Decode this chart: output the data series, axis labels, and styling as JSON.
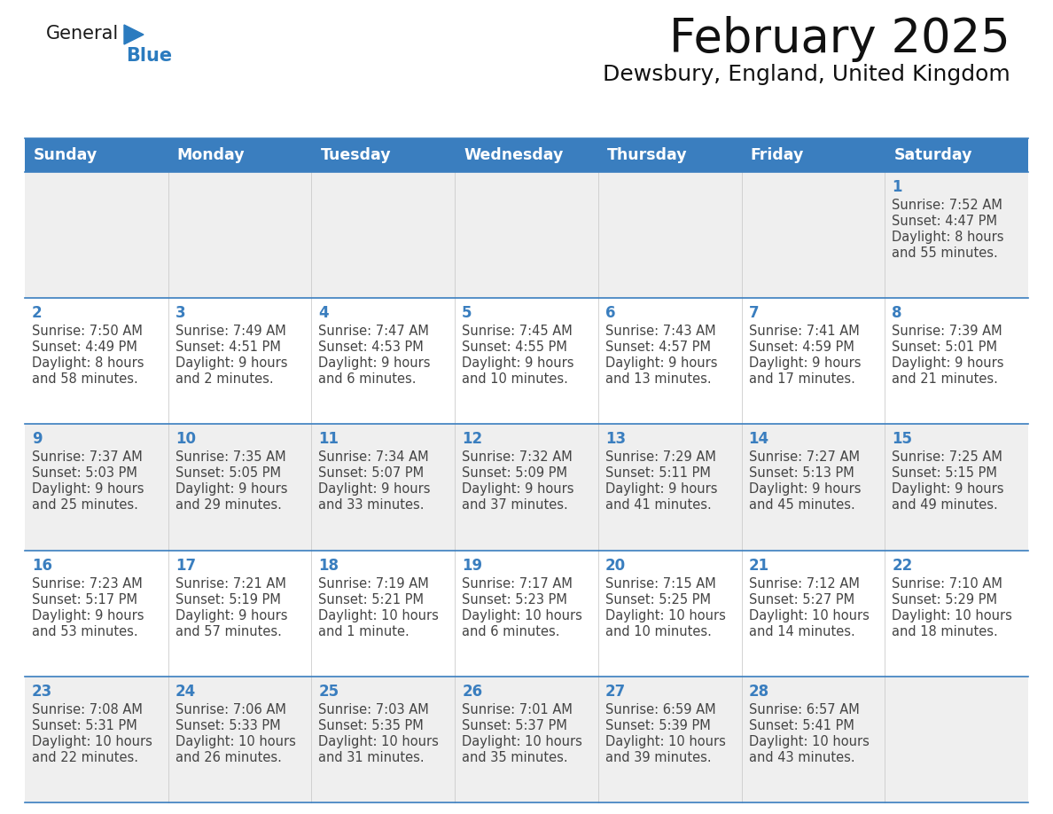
{
  "title": "February 2025",
  "subtitle": "Dewsbury, England, United Kingdom",
  "header_color": "#3a7ebf",
  "header_text_color": "#ffffff",
  "row_bg_odd": "#efefef",
  "row_bg_even": "#ffffff",
  "day_num_color": "#3a7ebf",
  "info_text_color": "#444444",
  "days_of_week": [
    "Sunday",
    "Monday",
    "Tuesday",
    "Wednesday",
    "Thursday",
    "Friday",
    "Saturday"
  ],
  "logo_general_color": "#1a1a1a",
  "logo_blue_color": "#2b7bbf",
  "calendar_data": [
    [
      null,
      null,
      null,
      null,
      null,
      null,
      {
        "day": "1",
        "sunrise": "7:52 AM",
        "sunset": "4:47 PM",
        "daylight_l1": "8 hours",
        "daylight_l2": "and 55 minutes."
      }
    ],
    [
      {
        "day": "2",
        "sunrise": "7:50 AM",
        "sunset": "4:49 PM",
        "daylight_l1": "8 hours",
        "daylight_l2": "and 58 minutes."
      },
      {
        "day": "3",
        "sunrise": "7:49 AM",
        "sunset": "4:51 PM",
        "daylight_l1": "9 hours",
        "daylight_l2": "and 2 minutes."
      },
      {
        "day": "4",
        "sunrise": "7:47 AM",
        "sunset": "4:53 PM",
        "daylight_l1": "9 hours",
        "daylight_l2": "and 6 minutes."
      },
      {
        "day": "5",
        "sunrise": "7:45 AM",
        "sunset": "4:55 PM",
        "daylight_l1": "9 hours",
        "daylight_l2": "and 10 minutes."
      },
      {
        "day": "6",
        "sunrise": "7:43 AM",
        "sunset": "4:57 PM",
        "daylight_l1": "9 hours",
        "daylight_l2": "and 13 minutes."
      },
      {
        "day": "7",
        "sunrise": "7:41 AM",
        "sunset": "4:59 PM",
        "daylight_l1": "9 hours",
        "daylight_l2": "and 17 minutes."
      },
      {
        "day": "8",
        "sunrise": "7:39 AM",
        "sunset": "5:01 PM",
        "daylight_l1": "9 hours",
        "daylight_l2": "and 21 minutes."
      }
    ],
    [
      {
        "day": "9",
        "sunrise": "7:37 AM",
        "sunset": "5:03 PM",
        "daylight_l1": "9 hours",
        "daylight_l2": "and 25 minutes."
      },
      {
        "day": "10",
        "sunrise": "7:35 AM",
        "sunset": "5:05 PM",
        "daylight_l1": "9 hours",
        "daylight_l2": "and 29 minutes."
      },
      {
        "day": "11",
        "sunrise": "7:34 AM",
        "sunset": "5:07 PM",
        "daylight_l1": "9 hours",
        "daylight_l2": "and 33 minutes."
      },
      {
        "day": "12",
        "sunrise": "7:32 AM",
        "sunset": "5:09 PM",
        "daylight_l1": "9 hours",
        "daylight_l2": "and 37 minutes."
      },
      {
        "day": "13",
        "sunrise": "7:29 AM",
        "sunset": "5:11 PM",
        "daylight_l1": "9 hours",
        "daylight_l2": "and 41 minutes."
      },
      {
        "day": "14",
        "sunrise": "7:27 AM",
        "sunset": "5:13 PM",
        "daylight_l1": "9 hours",
        "daylight_l2": "and 45 minutes."
      },
      {
        "day": "15",
        "sunrise": "7:25 AM",
        "sunset": "5:15 PM",
        "daylight_l1": "9 hours",
        "daylight_l2": "and 49 minutes."
      }
    ],
    [
      {
        "day": "16",
        "sunrise": "7:23 AM",
        "sunset": "5:17 PM",
        "daylight_l1": "9 hours",
        "daylight_l2": "and 53 minutes."
      },
      {
        "day": "17",
        "sunrise": "7:21 AM",
        "sunset": "5:19 PM",
        "daylight_l1": "9 hours",
        "daylight_l2": "and 57 minutes."
      },
      {
        "day": "18",
        "sunrise": "7:19 AM",
        "sunset": "5:21 PM",
        "daylight_l1": "10 hours",
        "daylight_l2": "and 1 minute."
      },
      {
        "day": "19",
        "sunrise": "7:17 AM",
        "sunset": "5:23 PM",
        "daylight_l1": "10 hours",
        "daylight_l2": "and 6 minutes."
      },
      {
        "day": "20",
        "sunrise": "7:15 AM",
        "sunset": "5:25 PM",
        "daylight_l1": "10 hours",
        "daylight_l2": "and 10 minutes."
      },
      {
        "day": "21",
        "sunrise": "7:12 AM",
        "sunset": "5:27 PM",
        "daylight_l1": "10 hours",
        "daylight_l2": "and 14 minutes."
      },
      {
        "day": "22",
        "sunrise": "7:10 AM",
        "sunset": "5:29 PM",
        "daylight_l1": "10 hours",
        "daylight_l2": "and 18 minutes."
      }
    ],
    [
      {
        "day": "23",
        "sunrise": "7:08 AM",
        "sunset": "5:31 PM",
        "daylight_l1": "10 hours",
        "daylight_l2": "and 22 minutes."
      },
      {
        "day": "24",
        "sunrise": "7:06 AM",
        "sunset": "5:33 PM",
        "daylight_l1": "10 hours",
        "daylight_l2": "and 26 minutes."
      },
      {
        "day": "25",
        "sunrise": "7:03 AM",
        "sunset": "5:35 PM",
        "daylight_l1": "10 hours",
        "daylight_l2": "and 31 minutes."
      },
      {
        "day": "26",
        "sunrise": "7:01 AM",
        "sunset": "5:37 PM",
        "daylight_l1": "10 hours",
        "daylight_l2": "and 35 minutes."
      },
      {
        "day": "27",
        "sunrise": "6:59 AM",
        "sunset": "5:39 PM",
        "daylight_l1": "10 hours",
        "daylight_l2": "and 39 minutes."
      },
      {
        "day": "28",
        "sunrise": "6:57 AM",
        "sunset": "5:41 PM",
        "daylight_l1": "10 hours",
        "daylight_l2": "and 43 minutes."
      },
      null
    ]
  ]
}
